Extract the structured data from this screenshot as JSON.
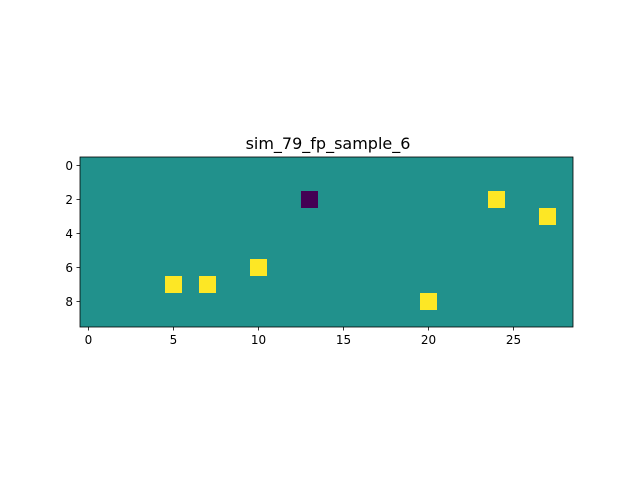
{
  "chart_data": {
    "type": "heatmap",
    "title": "sim_79_fp_sample_6",
    "xlabel": "",
    "ylabel": "",
    "n_rows": 10,
    "n_cols": 29,
    "background_value": 0,
    "cells": [
      {
        "row": 2,
        "col": 13,
        "value": -1
      },
      {
        "row": 2,
        "col": 24,
        "value": 1
      },
      {
        "row": 3,
        "col": 27,
        "value": 1
      },
      {
        "row": 6,
        "col": 10,
        "value": 1
      },
      {
        "row": 7,
        "col": 5,
        "value": 1
      },
      {
        "row": 7,
        "col": 7,
        "value": 1
      },
      {
        "row": 8,
        "col": 20,
        "value": 1
      }
    ],
    "colormap": "viridis",
    "value_colors": {
      "-1": "#440154",
      "0": "#21918c",
      "1": "#fde725"
    },
    "x_ticks": [
      0,
      5,
      10,
      15,
      20,
      25
    ],
    "x_tick_labels": [
      "0",
      "5",
      "10",
      "15",
      "20",
      "25"
    ],
    "y_ticks": [
      0,
      2,
      4,
      6,
      8
    ],
    "y_tick_labels": [
      "0",
      "2",
      "4",
      "6",
      "8"
    ],
    "grid": false,
    "legend": "none"
  }
}
